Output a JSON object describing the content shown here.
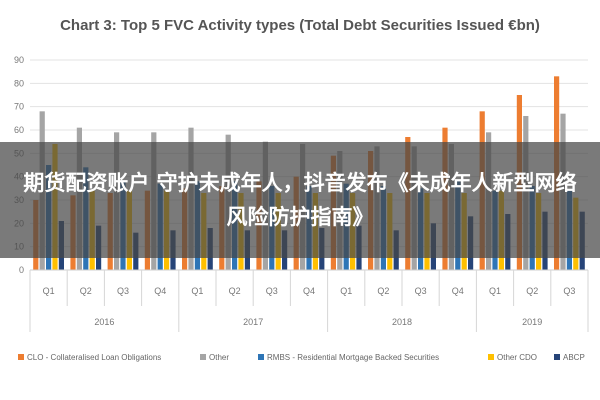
{
  "overlay": {
    "text": "期货配资账户 守护未成年人，抖音发布《未成年人新型网络风险防护指南》"
  },
  "chart_data": {
    "type": "bar",
    "title": "Chart 3: Top 5 FVC Activity types (Total Debt Securities Issued €bn)",
    "xlabel": "",
    "ylabel": "",
    "ylim": [
      0,
      90
    ],
    "yticks": [
      0,
      10,
      20,
      30,
      40,
      50,
      60,
      70,
      80,
      90
    ],
    "grid": true,
    "legend_position": "bottom",
    "categories": [
      "Q1",
      "Q2",
      "Q3",
      "Q4",
      "Q1",
      "Q2",
      "Q3",
      "Q4",
      "Q1",
      "Q2",
      "Q3",
      "Q4",
      "Q1",
      "Q2",
      "Q3"
    ],
    "groups": [
      {
        "label": "2016",
        "count": 4
      },
      {
        "label": "2017",
        "count": 4
      },
      {
        "label": "2018",
        "count": 4
      },
      {
        "label": "2019",
        "count": 3
      }
    ],
    "series": [
      {
        "name": "CLO - Collateralised Loan Obligations",
        "color": "#ed7d31",
        "values": [
          30,
          32,
          33,
          34,
          35,
          36,
          38,
          40,
          49,
          51,
          57,
          61,
          68,
          75,
          83
        ]
      },
      {
        "name": "Other",
        "color": "#a5a5a5",
        "values": [
          68,
          61,
          59,
          59,
          61,
          58,
          55,
          54,
          51,
          53,
          53,
          54,
          59,
          66,
          67
        ]
      },
      {
        "name": "RMBS - Residential Mortgage Backed Securities",
        "color": "#2e75b6",
        "values": [
          45,
          44,
          38,
          37,
          38,
          38,
          36,
          36,
          37,
          36,
          35,
          38,
          34,
          36,
          34
        ]
      },
      {
        "name": "Other CDO",
        "color": "#ffc000",
        "values": [
          54,
          34,
          34,
          34,
          33,
          33,
          33,
          33,
          33,
          33,
          33,
          33,
          34,
          33,
          31
        ]
      },
      {
        "name": "ABCP",
        "color": "#264478",
        "values": [
          21,
          19,
          16,
          17,
          18,
          17,
          17,
          18,
          19,
          17,
          20,
          23,
          24,
          25,
          25
        ]
      }
    ]
  }
}
